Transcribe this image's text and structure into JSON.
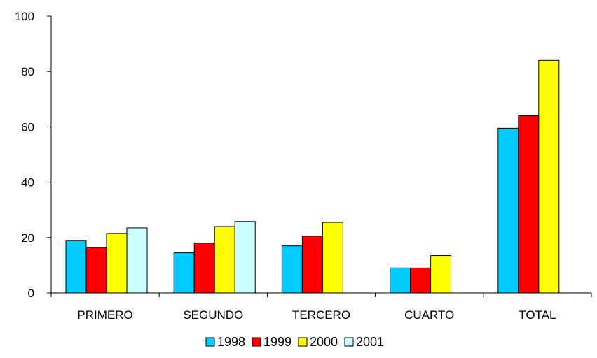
{
  "chart_data": {
    "type": "bar",
    "title": "",
    "xlabel": "",
    "ylabel": "",
    "ylim": [
      0,
      100
    ],
    "yticks": [
      0,
      20,
      40,
      60,
      80,
      100
    ],
    "grid": false,
    "legend_position": "bottom",
    "categories": [
      "PRIMERO",
      "SEGUNDO",
      "TERCERO",
      "CUARTO",
      "TOTAL"
    ],
    "series": [
      {
        "name": "1998",
        "color": "#00CCFF",
        "values": [
          19,
          14.5,
          17,
          9,
          59.5
        ]
      },
      {
        "name": "1999",
        "color": "#FF0000",
        "values": [
          16.5,
          18,
          20.5,
          9,
          64
        ]
      },
      {
        "name": "2000",
        "color": "#FFFF00",
        "values": [
          21.5,
          24,
          25.5,
          13.5,
          84
        ]
      },
      {
        "name": "2001",
        "color": "#CCFFFF",
        "values": [
          23.5,
          25.8,
          null,
          null,
          null
        ]
      }
    ]
  }
}
